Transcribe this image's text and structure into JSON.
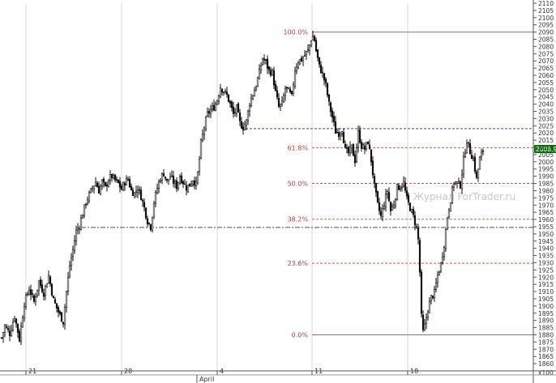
{
  "chart_data": {
    "type": "candlestick",
    "watermark": "Журнал ForTrader.ru",
    "current_price_label": "2008.9",
    "y_axis": {
      "min": 1855,
      "max": 2110,
      "tick_step": 5,
      "bottom_label": "x100"
    },
    "x_axis": {
      "day_labels": [
        "21",
        "28",
        "4",
        "11",
        "18"
      ],
      "month_label": "April"
    },
    "fibonacci": {
      "high": 2090,
      "low": 1880,
      "levels": [
        {
          "label": "100.0%",
          "value": 2090
        },
        {
          "label": "61.8%",
          "value": 2009.8
        },
        {
          "label": "50.0%",
          "value": 1985
        },
        {
          "label": "38.2%",
          "value": 1960.2
        },
        {
          "label": "23.6%",
          "value": 1929.6
        },
        {
          "label": "0.0%",
          "value": 1880
        }
      ]
    },
    "horizontal_lines": [
      {
        "name": "resistance",
        "value": 2023,
        "color": "#4444aa"
      },
      {
        "name": "support",
        "value": 1954.5,
        "color": "#4444aa"
      }
    ],
    "price_path": [
      [
        0,
        1874
      ],
      [
        6,
        1886
      ],
      [
        12,
        1881
      ],
      [
        18,
        1893
      ],
      [
        24,
        1877
      ],
      [
        30,
        1902
      ],
      [
        36,
        1912
      ],
      [
        42,
        1903
      ],
      [
        48,
        1917
      ],
      [
        54,
        1909
      ],
      [
        60,
        1921
      ],
      [
        66,
        1904
      ],
      [
        72,
        1896
      ],
      [
        78,
        1889
      ],
      [
        82,
        1910
      ],
      [
        86,
        1928
      ],
      [
        90,
        1939
      ],
      [
        94,
        1952
      ],
      [
        98,
        1956
      ],
      [
        102,
        1964
      ],
      [
        106,
        1972
      ],
      [
        110,
        1977
      ],
      [
        114,
        1982
      ],
      [
        118,
        1986
      ],
      [
        122,
        1980
      ],
      [
        126,
        1986
      ],
      [
        130,
        1982
      ],
      [
        134,
        1988
      ],
      [
        138,
        1990
      ],
      [
        142,
        1987
      ],
      [
        146,
        1985
      ],
      [
        150,
        1981
      ],
      [
        154,
        1986
      ],
      [
        158,
        1988
      ],
      [
        162,
        1980
      ],
      [
        166,
        1978
      ],
      [
        170,
        1982
      ],
      [
        174,
        1976
      ],
      [
        178,
        1968
      ],
      [
        182,
        1959
      ],
      [
        186,
        1955
      ],
      [
        190,
        1972
      ],
      [
        194,
        1982
      ],
      [
        198,
        1989
      ],
      [
        202,
        1992
      ],
      [
        206,
        1986
      ],
      [
        210,
        1990
      ],
      [
        214,
        1986
      ],
      [
        218,
        1983
      ],
      [
        222,
        1990
      ],
      [
        226,
        1986
      ],
      [
        230,
        1982
      ],
      [
        234,
        1984
      ],
      [
        238,
        1988
      ],
      [
        242,
        1984
      ],
      [
        245,
        1996
      ],
      [
        248,
        2013
      ],
      [
        252,
        2024
      ],
      [
        256,
        2033
      ],
      [
        260,
        2036
      ],
      [
        264,
        2038
      ],
      [
        268,
        2043
      ],
      [
        272,
        2052
      ],
      [
        276,
        2049
      ],
      [
        280,
        2046
      ],
      [
        284,
        2040
      ],
      [
        288,
        2033
      ],
      [
        292,
        2037
      ],
      [
        296,
        2027
      ],
      [
        300,
        2024
      ],
      [
        304,
        2028
      ],
      [
        308,
        2041
      ],
      [
        312,
        2047
      ],
      [
        316,
        2053
      ],
      [
        320,
        2062
      ],
      [
        324,
        2072
      ],
      [
        328,
        2069
      ],
      [
        332,
        2063
      ],
      [
        336,
        2062
      ],
      [
        340,
        2048
      ],
      [
        344,
        2038
      ],
      [
        348,
        2040
      ],
      [
        352,
        2051
      ],
      [
        356,
        2049
      ],
      [
        360,
        2045
      ],
      [
        364,
        2064
      ],
      [
        368,
        2070
      ],
      [
        372,
        2071
      ],
      [
        376,
        2074
      ],
      [
        380,
        2077
      ],
      [
        384,
        2085
      ],
      [
        387,
        2088
      ],
      [
        390,
        2077
      ],
      [
        394,
        2066
      ],
      [
        398,
        2061
      ],
      [
        402,
        2053
      ],
      [
        406,
        2040
      ],
      [
        410,
        2031
      ],
      [
        414,
        2021
      ],
      [
        418,
        2020
      ],
      [
        422,
        2023
      ],
      [
        426,
        2008
      ],
      [
        430,
        2006
      ],
      [
        434,
        2010
      ],
      [
        438,
        2001
      ],
      [
        442,
        2020
      ],
      [
        446,
        2011
      ],
      [
        450,
        2009
      ],
      [
        454,
        2014
      ],
      [
        458,
        2001
      ],
      [
        462,
        1983
      ],
      [
        466,
        1970
      ],
      [
        470,
        1962
      ],
      [
        474,
        1971
      ],
      [
        478,
        1980
      ],
      [
        482,
        1966
      ],
      [
        486,
        1971
      ],
      [
        490,
        1982
      ],
      [
        494,
        1983
      ],
      [
        498,
        1985
      ],
      [
        502,
        1974
      ],
      [
        506,
        1968
      ],
      [
        510,
        1962
      ],
      [
        514,
        1954
      ],
      [
        517,
        1942
      ],
      [
        519,
        1905
      ],
      [
        521,
        1880
      ],
      [
        524,
        1886
      ],
      [
        528,
        1898
      ],
      [
        532,
        1906
      ],
      [
        536,
        1909
      ],
      [
        540,
        1921
      ],
      [
        544,
        1929
      ],
      [
        548,
        1943
      ],
      [
        552,
        1962
      ],
      [
        556,
        1974
      ],
      [
        560,
        1986
      ],
      [
        564,
        1985
      ],
      [
        568,
        1984
      ],
      [
        572,
        2001
      ],
      [
        576,
        2015
      ],
      [
        580,
        2007
      ],
      [
        584,
        2002
      ],
      [
        588,
        1988
      ],
      [
        592,
        2002
      ],
      [
        596,
        2008
      ]
    ]
  }
}
